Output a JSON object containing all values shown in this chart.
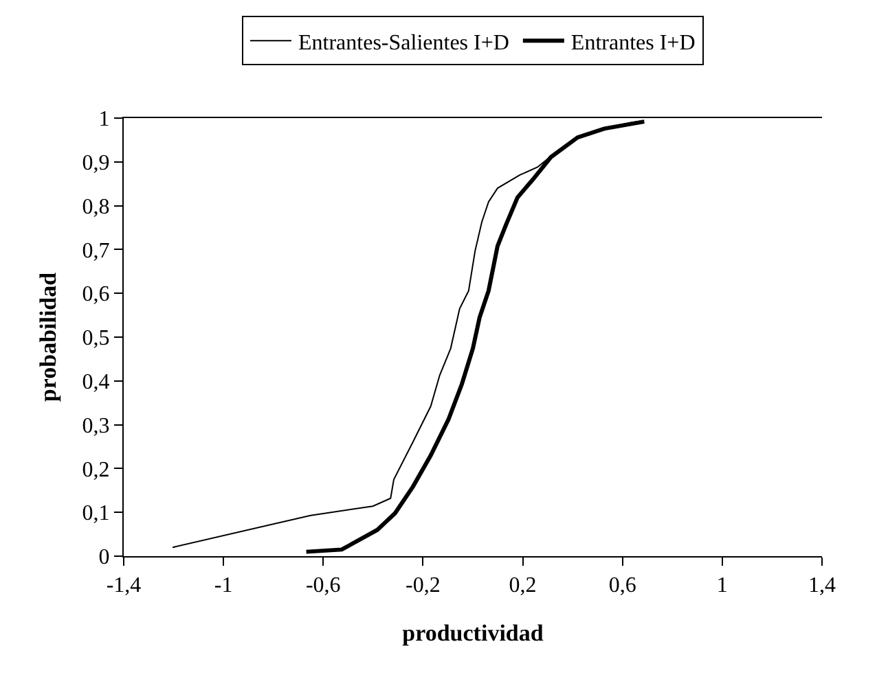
{
  "chart_data": {
    "type": "line",
    "xlabel": "productividad",
    "ylabel": "probabilidad",
    "xlim": [
      -1.4,
      1.4
    ],
    "xticks": [
      {
        "value": -1.4,
        "label": "-1,4"
      },
      {
        "value": -1,
        "label": "-1"
      },
      {
        "value": -0.6,
        "label": "-0,6"
      },
      {
        "value": -0.2,
        "label": "-0,2"
      },
      {
        "value": 0.2,
        "label": "0,2"
      },
      {
        "value": 0.6,
        "label": "0,6"
      },
      {
        "value": 1,
        "label": "1"
      },
      {
        "value": 1.4,
        "label": "1,4"
      }
    ],
    "ylim": [
      0,
      1
    ],
    "yticks": [
      0,
      {
        "value": 0.1,
        "label": "0,1"
      },
      {
        "value": 0.2,
        "label": "0,2"
      },
      {
        "value": 0.3,
        "label": "0,3"
      },
      {
        "value": 0.4,
        "label": "0,4"
      },
      {
        "value": 0.5,
        "label": "0,5"
      },
      {
        "value": 0.6,
        "label": "0,6"
      },
      {
        "value": 0.7,
        "label": "0,7"
      },
      {
        "value": 0.8,
        "label": "0,8"
      },
      {
        "value": 0.9,
        "label": "0,9"
      },
      1
    ],
    "grid": false,
    "legend": "top",
    "marker": "none",
    "line_style": "solid",
    "series": [
      {
        "name": "Entrantes-Salientes I+D",
        "color": "#000000",
        "x": [
          -1.204,
          -0.651,
          -0.401,
          -0.33,
          -0.317,
          -0.24,
          -0.169,
          -0.133,
          -0.089,
          -0.053,
          -0.017,
          0.009,
          0.036,
          0.063,
          0.099,
          0.188,
          0.259,
          0.331,
          0.42,
          0.527,
          0.634,
          0.687
        ],
        "values": [
          0.02,
          0.093,
          0.114,
          0.132,
          0.175,
          0.261,
          0.342,
          0.413,
          0.474,
          0.565,
          0.606,
          0.697,
          0.763,
          0.809,
          0.84,
          0.87,
          0.888,
          0.921,
          0.956,
          0.976,
          0.99,
          0.994
        ]
      },
      {
        "name": "Entrantes I+D",
        "color": "#000000",
        "x": [
          -0.668,
          -0.526,
          -0.383,
          -0.312,
          -0.24,
          -0.169,
          -0.098,
          -0.044,
          0,
          0.027,
          0.063,
          0.099,
          0.134,
          0.179,
          0.241,
          0.313,
          0.42,
          0.527,
          0.687
        ],
        "values": [
          0.01,
          0.015,
          0.06,
          0.098,
          0.159,
          0.23,
          0.312,
          0.393,
          0.474,
          0.545,
          0.606,
          0.708,
          0.758,
          0.819,
          0.86,
          0.911,
          0.956,
          0.976,
          0.992
        ]
      }
    ]
  }
}
